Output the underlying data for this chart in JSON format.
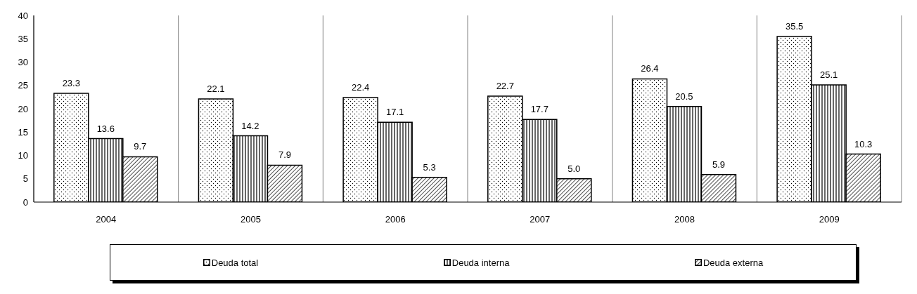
{
  "chart_data": {
    "type": "bar",
    "categories": [
      "2004",
      "2005",
      "2006",
      "2007",
      "2008",
      "2009"
    ],
    "series": [
      {
        "name": "Deuda total",
        "color": "#000000",
        "values": [
          23.3,
          22.1,
          22.4,
          22.7,
          26.4,
          35.5
        ],
        "value_labels": [
          "23.3",
          "22.1",
          "22.4",
          "22.7",
          "26.4",
          "35.5"
        ]
      },
      {
        "name": "Deuda interna",
        "color": "#000000",
        "values": [
          13.6,
          14.2,
          17.1,
          17.7,
          20.5,
          25.1
        ],
        "value_labels": [
          "13.6",
          "14.2",
          "17.1",
          "17.7",
          "20.5",
          "25.1"
        ]
      },
      {
        "name": "Deuda externa",
        "color": "#000000",
        "values": [
          9.7,
          7.9,
          5.3,
          5.0,
          5.9,
          10.3
        ],
        "value_labels": [
          "9.7",
          "7.9",
          "5.3",
          "5.0",
          "5.9",
          "10.3"
        ]
      }
    ],
    "ylim": [
      0,
      40
    ],
    "yticks": [
      0,
      5,
      10,
      15,
      20,
      25,
      30,
      35,
      40
    ],
    "grid": "x",
    "legend": "bottom"
  }
}
